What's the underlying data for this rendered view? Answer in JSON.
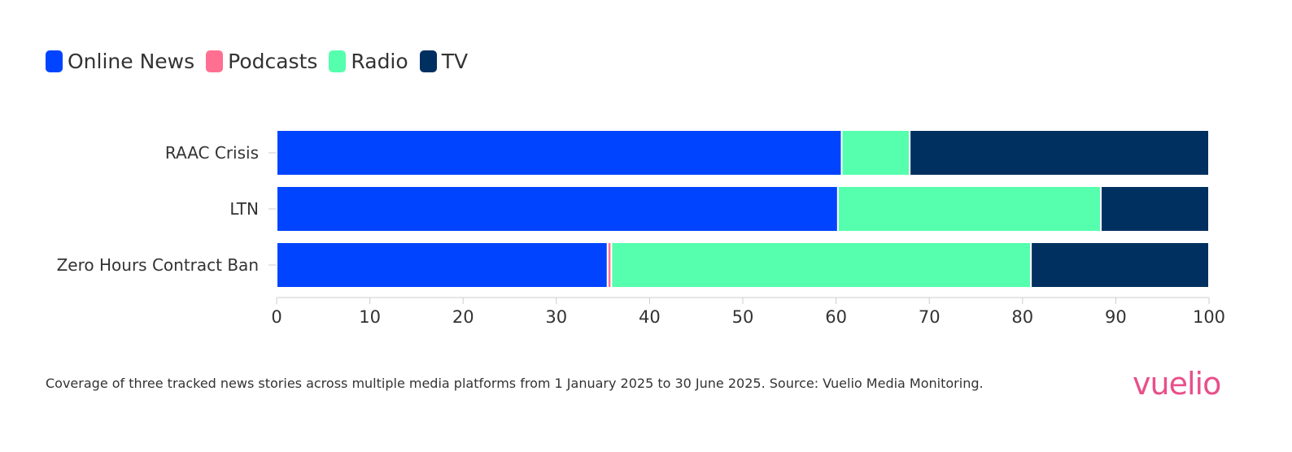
{
  "legend": {
    "items": [
      {
        "label": "Online News",
        "color": "#0044ff"
      },
      {
        "label": "Podcasts",
        "color": "#ff6f91"
      },
      {
        "label": "Radio",
        "color": "#55ffad"
      },
      {
        "label": "TV",
        "color": "#003060"
      }
    ]
  },
  "chart_data": {
    "type": "bar",
    "orientation": "horizontal",
    "stacked": true,
    "categories": [
      "RAAC Crisis",
      "LTN",
      "Zero Hours Contract Ban"
    ],
    "series": [
      {
        "name": "Online News",
        "color": "#0044ff",
        "values": [
          60.6,
          60.2,
          35.5
        ]
      },
      {
        "name": "Podcasts",
        "color": "#ff6f91",
        "values": [
          0,
          0,
          0.4
        ]
      },
      {
        "name": "Radio",
        "color": "#55ffad",
        "values": [
          7.3,
          28.2,
          45.0
        ]
      },
      {
        "name": "TV",
        "color": "#003060",
        "values": [
          32.1,
          11.6,
          19.1
        ]
      }
    ],
    "xlim": [
      0,
      100
    ],
    "xticks": [
      "0",
      "10",
      "20",
      "30",
      "40",
      "50",
      "60",
      "70",
      "80",
      "90",
      "100"
    ],
    "xlabel": "",
    "ylabel": "",
    "grid": false,
    "legend_position": "top-left"
  },
  "caption": "Coverage of three tracked news stories across multiple media platforms from 1 January 2025 to 30 June 2025. Source: Vuelio Media Monitoring.",
  "brand": {
    "name": "vuelio",
    "color": "#e8508a"
  }
}
